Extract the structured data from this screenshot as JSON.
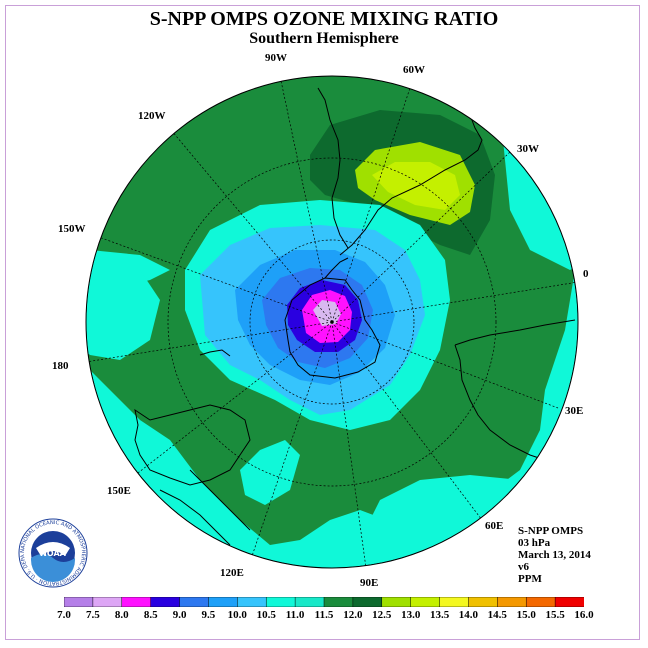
{
  "title": "S-NPP OMPS OZONE MIXING RATIO",
  "subtitle": "Southern Hemisphere",
  "longitude_labels": [
    "90W",
    "60W",
    "120W",
    "30W",
    "150W",
    "0",
    "180",
    "30E",
    "150E",
    "60E",
    "120E",
    "90E"
  ],
  "info": {
    "instrument": "S-NPP OMPS",
    "level": "03 hPa",
    "date": "March 13, 2014",
    "version": "v6",
    "units": "PPM"
  },
  "logo": {
    "text": "NOAA",
    "ring_text": "NATIONAL OCEANIC AND ATMOSPHERIC ADMINISTRATION · U.S. DEPARTMENT OF COMMERCE"
  },
  "colorbar": {
    "labels": [
      "7.0",
      "7.5",
      "8.0",
      "8.5",
      "9.0",
      "9.5",
      "10.0",
      "10.5",
      "11.0",
      "11.5",
      "12.0",
      "12.5",
      "13.0",
      "13.5",
      "14.0",
      "14.5",
      "15.0",
      "15.5",
      "16.0"
    ],
    "colors": [
      "#b57fe8",
      "#dda6f5",
      "#ff11ff",
      "#2a00e0",
      "#2d78f0",
      "#1ea0f8",
      "#36c4fc",
      "#10f8d8",
      "#18e8c8",
      "#1a8c3c",
      "#0d6a2e",
      "#a0e000",
      "#c4f000",
      "#f4f820",
      "#f0c000",
      "#f49800",
      "#f46800",
      "#f00000",
      "#8c5030"
    ]
  },
  "map_colors": {
    "c7": "#d8b8f0",
    "c8": "#ff11ff",
    "c85": "#2a00e0",
    "c9": "#2d78f0",
    "c95": "#1ea0f8",
    "c10": "#36c4fc",
    "c105": "#10f8d8",
    "c11": "#1a8c3c",
    "c115": "#0d6a2e",
    "c12": "#a0e000",
    "c125": "#c4f000"
  }
}
